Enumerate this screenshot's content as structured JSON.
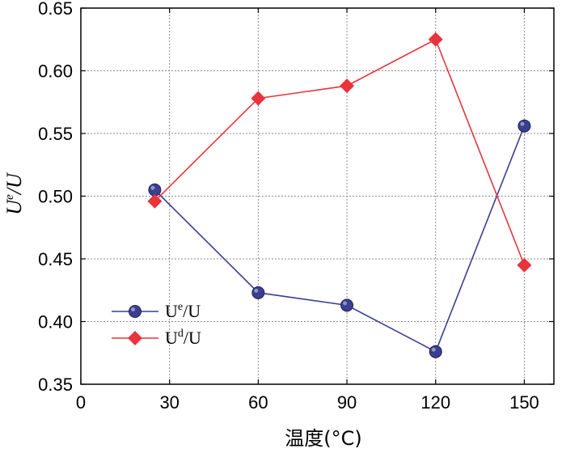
{
  "chart_data": {
    "type": "line",
    "title": "",
    "xlabel": "温度(°C)",
    "ylabel": {
      "base": "U",
      "sup": "e",
      "tail": "/U"
    },
    "xlim": [
      0,
      160
    ],
    "ylim": [
      0.35,
      0.65
    ],
    "x_ticks": [
      0,
      30,
      60,
      90,
      120,
      150
    ],
    "x_tick_labels": [
      "0",
      "30",
      "60",
      "90",
      "120",
      "150"
    ],
    "y_ticks": [
      0.35,
      0.4,
      0.45,
      0.5,
      0.55,
      0.6,
      0.65
    ],
    "y_tick_labels": [
      "0.35",
      "0.40",
      "0.45",
      "0.50",
      "0.55",
      "0.60",
      "0.65"
    ],
    "grid": true,
    "legend_position": "lower-left",
    "series": [
      {
        "label": {
          "base": "U",
          "sup": "e",
          "tail": "/U"
        },
        "marker": "circle",
        "color": "#3a3f8f",
        "x": [
          25,
          60,
          90,
          120,
          150
        ],
        "y": [
          0.505,
          0.423,
          0.413,
          0.376,
          0.556
        ]
      },
      {
        "label": {
          "base": "U",
          "sup": "d",
          "tail": "/U"
        },
        "marker": "diamond",
        "color": "#e8343c",
        "x": [
          25,
          60,
          90,
          120,
          150
        ],
        "y": [
          0.496,
          0.578,
          0.588,
          0.625,
          0.445
        ]
      }
    ]
  }
}
